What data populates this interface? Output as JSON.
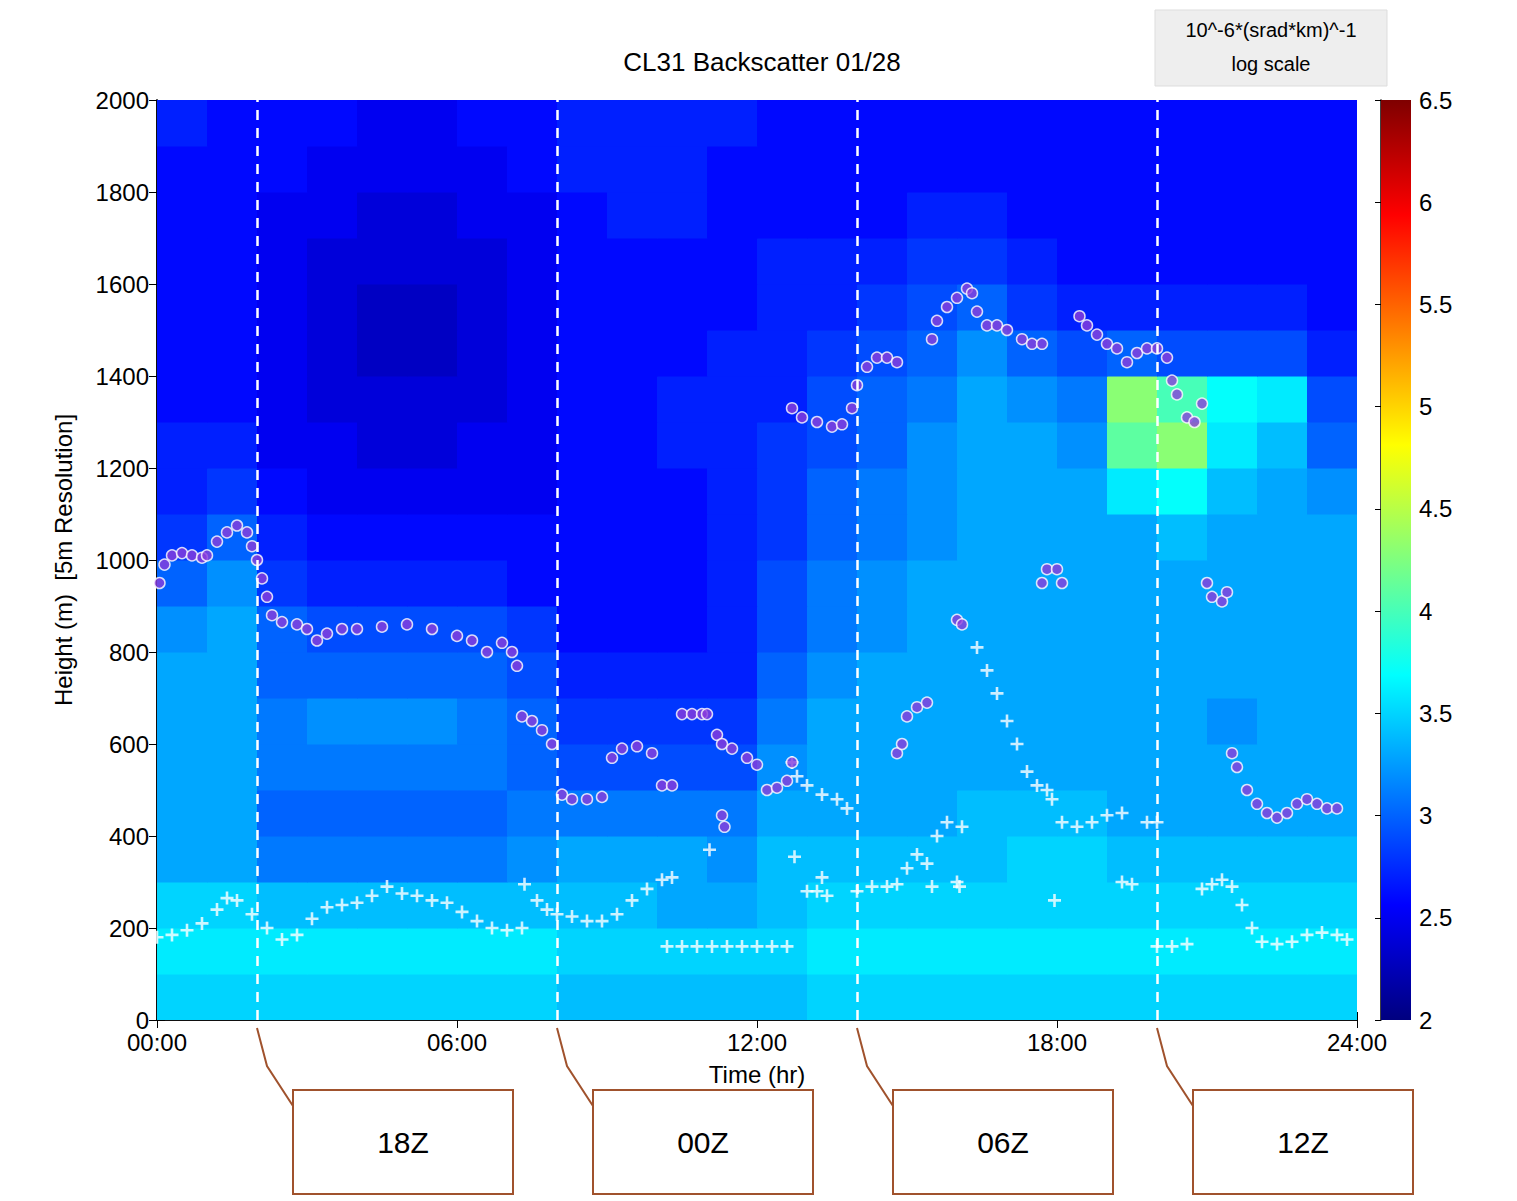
{
  "chart_data": {
    "type": "heatmap",
    "title": "CL31 Backscatter 01/28",
    "x_label": "Time (hr)",
    "y_label": "Height (m)  [5m Resolution]",
    "xlim": [
      0,
      24
    ],
    "xticks": [
      {
        "value": 0,
        "label": "00:00"
      },
      {
        "value": 6,
        "label": "06:00"
      },
      {
        "value": 12,
        "label": "12:00"
      },
      {
        "value": 18,
        "label": "18:00"
      },
      {
        "value": 24,
        "label": "24:00"
      }
    ],
    "ylim": [
      0,
      2000
    ],
    "yticks": [
      0,
      200,
      400,
      600,
      800,
      1000,
      1200,
      1400,
      1600,
      1800,
      2000
    ],
    "grid": false,
    "heatmap": {
      "x_edges": [
        0,
        1,
        2,
        3,
        4,
        5,
        6,
        7,
        8,
        9,
        10,
        11,
        12,
        13,
        14,
        15,
        16,
        17,
        18,
        19,
        20,
        21,
        22,
        23,
        24
      ],
      "y_edges": [
        0,
        100,
        200,
        300,
        400,
        500,
        600,
        700,
        800,
        900,
        1000,
        1100,
        1200,
        1300,
        1400,
        1500,
        1600,
        1700,
        1800,
        1900,
        2000
      ],
      "values": [
        [
          3.5,
          3.5,
          3.5,
          3.5,
          3.5,
          3.5,
          3.5,
          3.5,
          3.4,
          3.4,
          3.4,
          3.4,
          3.4,
          3.5,
          3.5,
          3.5,
          3.5,
          3.5,
          3.5,
          3.5,
          3.5,
          3.5,
          3.5,
          3.5
        ],
        [
          3.6,
          3.6,
          3.6,
          3.6,
          3.6,
          3.6,
          3.6,
          3.6,
          3.5,
          3.5,
          3.5,
          3.5,
          3.5,
          3.6,
          3.6,
          3.6,
          3.6,
          3.6,
          3.6,
          3.6,
          3.6,
          3.6,
          3.6,
          3.6
        ],
        [
          3.5,
          3.5,
          3.4,
          3.4,
          3.4,
          3.4,
          3.4,
          3.4,
          3.4,
          3.4,
          3.3,
          3.3,
          3.4,
          3.5,
          3.5,
          3.5,
          3.5,
          3.5,
          3.5,
          3.5,
          3.5,
          3.5,
          3.5,
          3.5
        ],
        [
          3.3,
          3.3,
          3.1,
          3.1,
          3.1,
          3.1,
          3.1,
          3.2,
          3.3,
          3.3,
          3.3,
          3.2,
          3.4,
          3.4,
          3.4,
          3.4,
          3.4,
          3.5,
          3.5,
          3.4,
          3.4,
          3.4,
          3.4,
          3.4
        ],
        [
          3.3,
          3.3,
          3.0,
          3.0,
          3.0,
          3.0,
          3.0,
          3.1,
          3.1,
          3.1,
          3.1,
          3.1,
          3.3,
          3.3,
          3.3,
          3.3,
          3.4,
          3.4,
          3.4,
          3.3,
          3.3,
          3.3,
          3.3,
          3.3
        ],
        [
          3.3,
          3.3,
          3.1,
          3.1,
          3.1,
          3.1,
          3.1,
          3.0,
          2.9,
          2.9,
          2.9,
          2.9,
          3.2,
          3.3,
          3.3,
          3.3,
          3.3,
          3.3,
          3.3,
          3.3,
          3.3,
          3.3,
          3.3,
          3.3
        ],
        [
          3.3,
          3.3,
          3.1,
          3.2,
          3.2,
          3.2,
          3.1,
          3.0,
          2.8,
          2.8,
          2.8,
          2.8,
          3.1,
          3.3,
          3.3,
          3.3,
          3.3,
          3.3,
          3.3,
          3.3,
          3.3,
          3.2,
          3.3,
          3.3
        ],
        [
          3.3,
          3.3,
          3.0,
          3.0,
          3.0,
          3.0,
          3.0,
          2.9,
          2.7,
          2.7,
          2.7,
          2.7,
          3.0,
          3.2,
          3.3,
          3.3,
          3.3,
          3.3,
          3.3,
          3.3,
          3.3,
          3.3,
          3.3,
          3.3
        ],
        [
          3.2,
          3.3,
          3.0,
          2.9,
          2.9,
          2.9,
          2.9,
          2.8,
          2.6,
          2.6,
          2.6,
          2.7,
          2.9,
          3.1,
          3.2,
          3.3,
          3.3,
          3.3,
          3.3,
          3.3,
          3.3,
          3.3,
          3.3,
          3.3
        ],
        [
          3.0,
          3.2,
          2.8,
          2.7,
          2.7,
          2.7,
          2.7,
          2.6,
          2.6,
          2.6,
          2.6,
          2.7,
          2.9,
          3.1,
          3.2,
          3.3,
          3.3,
          3.3,
          3.3,
          3.3,
          3.3,
          3.3,
          3.3,
          3.3
        ],
        [
          2.8,
          3.0,
          2.7,
          2.6,
          2.6,
          2.6,
          2.6,
          2.6,
          2.6,
          2.6,
          2.6,
          2.7,
          2.8,
          3.0,
          3.1,
          3.2,
          3.3,
          3.3,
          3.3,
          3.3,
          3.4,
          3.3,
          3.3,
          3.3
        ],
        [
          2.7,
          2.8,
          2.6,
          2.5,
          2.5,
          2.5,
          2.5,
          2.5,
          2.6,
          2.6,
          2.6,
          2.7,
          2.8,
          3.0,
          3.1,
          3.2,
          3.3,
          3.3,
          3.3,
          3.6,
          3.7,
          3.4,
          3.3,
          3.2
        ],
        [
          2.7,
          2.7,
          2.5,
          2.5,
          2.4,
          2.4,
          2.5,
          2.5,
          2.6,
          2.6,
          2.7,
          2.7,
          2.8,
          2.9,
          3.0,
          3.2,
          3.3,
          3.3,
          3.2,
          4.1,
          4.3,
          3.6,
          3.4,
          3.0
        ],
        [
          2.6,
          2.6,
          2.5,
          2.4,
          2.4,
          2.4,
          2.4,
          2.5,
          2.6,
          2.6,
          2.7,
          2.7,
          2.7,
          2.9,
          3.0,
          3.1,
          3.3,
          3.2,
          3.1,
          4.3,
          4.0,
          3.7,
          3.6,
          2.9
        ],
        [
          2.6,
          2.6,
          2.5,
          2.4,
          2.3,
          2.3,
          2.4,
          2.5,
          2.6,
          2.6,
          2.6,
          2.7,
          2.7,
          2.8,
          2.9,
          3.0,
          3.2,
          3.0,
          2.9,
          3.0,
          2.9,
          2.9,
          2.9,
          2.7
        ],
        [
          2.6,
          2.6,
          2.5,
          2.4,
          2.3,
          2.3,
          2.4,
          2.5,
          2.6,
          2.6,
          2.6,
          2.6,
          2.7,
          2.7,
          2.8,
          2.9,
          3.0,
          2.8,
          2.7,
          2.7,
          2.7,
          2.7,
          2.7,
          2.6
        ],
        [
          2.6,
          2.6,
          2.5,
          2.4,
          2.4,
          2.4,
          2.4,
          2.5,
          2.6,
          2.6,
          2.6,
          2.6,
          2.7,
          2.7,
          2.7,
          2.8,
          2.8,
          2.7,
          2.6,
          2.6,
          2.6,
          2.6,
          2.6,
          2.6
        ],
        [
          2.6,
          2.6,
          2.5,
          2.5,
          2.4,
          2.4,
          2.5,
          2.5,
          2.6,
          2.7,
          2.7,
          2.6,
          2.6,
          2.6,
          2.6,
          2.7,
          2.7,
          2.6,
          2.6,
          2.6,
          2.6,
          2.6,
          2.6,
          2.6
        ],
        [
          2.6,
          2.6,
          2.6,
          2.5,
          2.5,
          2.5,
          2.5,
          2.6,
          2.7,
          2.7,
          2.7,
          2.6,
          2.6,
          2.6,
          2.6,
          2.6,
          2.6,
          2.6,
          2.6,
          2.6,
          2.6,
          2.6,
          2.6,
          2.6
        ],
        [
          2.7,
          2.6,
          2.6,
          2.6,
          2.5,
          2.5,
          2.6,
          2.6,
          2.7,
          2.7,
          2.7,
          2.7,
          2.6,
          2.6,
          2.6,
          2.6,
          2.6,
          2.6,
          2.6,
          2.6,
          2.6,
          2.6,
          2.6,
          2.6
        ]
      ]
    },
    "colorbar": {
      "label": [
        "10^-6*(srad*km)^-1",
        "log scale"
      ],
      "range": [
        2,
        6.5
      ],
      "ticks": [
        2,
        2.5,
        3,
        3.5,
        4,
        4.5,
        5,
        5.5,
        6,
        6.5
      ]
    },
    "series": [
      {
        "type": "scatter",
        "marker": "plus",
        "color": "#ffffff",
        "x": [
          0.0,
          0.3,
          0.6,
          0.9,
          1.2,
          1.4,
          1.6,
          1.9,
          2.2,
          2.5,
          2.8,
          3.1,
          3.4,
          3.7,
          4.0,
          4.3,
          4.6,
          4.9,
          5.2,
          5.5,
          5.8,
          6.1,
          6.4,
          6.7,
          7.0,
          7.3,
          7.35,
          7.6,
          7.8,
          8.0,
          8.3,
          8.6,
          8.9,
          9.2,
          9.5,
          9.8,
          10.1,
          10.3,
          10.2,
          10.5,
          10.8,
          11.1,
          11.4,
          11.7,
          12.0,
          12.3,
          12.6,
          11.05,
          12.7,
          12.8,
          13.0,
          13.3,
          13.6,
          13.8,
          12.75,
          13.0,
          13.2,
          13.4,
          13.3,
          14.0,
          14.3,
          14.6,
          14.8,
          15.0,
          15.2,
          15.4,
          15.5,
          15.6,
          15.8,
          16.1,
          16.0,
          16.05,
          17.95,
          16.4,
          16.6,
          16.8,
          17.0,
          17.2,
          17.4,
          17.6,
          17.8,
          17.9,
          18.1,
          18.4,
          18.7,
          19.0,
          19.3,
          19.8,
          20.0,
          19.3,
          19.5,
          20.0,
          20.3,
          20.6,
          20.9,
          21.1,
          21.3,
          21.5,
          21.7,
          21.9,
          22.1,
          22.4,
          22.7,
          23.0,
          23.3,
          23.6,
          23.8
        ],
        "values": [
          180,
          185,
          195,
          210,
          240,
          265,
          260,
          230,
          200,
          175,
          185,
          220,
          245,
          250,
          255,
          270,
          290,
          275,
          270,
          260,
          255,
          235,
          215,
          200,
          195,
          200,
          295,
          260,
          240,
          230,
          225,
          215,
          215,
          230,
          260,
          285,
          305,
          310,
          160,
          160,
          160,
          160,
          160,
          160,
          160,
          160,
          160,
          370,
          560,
          530,
          510,
          490,
          480,
          460,
          355,
          280,
          280,
          270,
          310,
          280,
          290,
          290,
          295,
          330,
          360,
          340,
          290,
          400,
          430,
          420,
          300,
          290,
          260,
          810,
          760,
          710,
          650,
          600,
          540,
          510,
          500,
          480,
          430,
          420,
          430,
          445,
          450,
          430,
          430,
          300,
          295,
          160,
          160,
          165,
          285,
          295,
          305,
          290,
          250,
          200,
          170,
          165,
          170,
          185,
          190,
          185,
          175
        ]
      },
      {
        "type": "scatter",
        "marker": "circle",
        "color": "#8b3ddb",
        "x": [
          0.05,
          0.15,
          0.3,
          0.5,
          0.7,
          0.9,
          1.0,
          1.2,
          1.4,
          1.6,
          1.8,
          1.9,
          2.0,
          2.1,
          2.2,
          2.3,
          2.5,
          2.8,
          3.0,
          3.2,
          3.4,
          3.7,
          4.0,
          4.5,
          5.0,
          5.5,
          6.0,
          6.3,
          6.6,
          6.9,
          7.1,
          7.2,
          7.3,
          7.5,
          7.7,
          7.9,
          8.1,
          8.3,
          8.6,
          8.9,
          9.1,
          9.3,
          9.6,
          9.9,
          10.1,
          10.3,
          10.5,
          10.7,
          10.9,
          11.0,
          11.2,
          11.3,
          11.3,
          11.35,
          11.5,
          11.8,
          12.0,
          12.2,
          12.4,
          12.6,
          12.7,
          12.7,
          12.9,
          13.2,
          13.5,
          13.7,
          13.9,
          14.0,
          14.2,
          14.4,
          14.6,
          14.8,
          14.8,
          14.9,
          15.0,
          15.2,
          15.4,
          15.5,
          15.6,
          15.8,
          16.0,
          16.2,
          16.3,
          16.4,
          16.6,
          16.8,
          17.0,
          17.3,
          17.5,
          17.7,
          16.0,
          16.1,
          17.7,
          17.8,
          18.0,
          18.1,
          18.45,
          18.6,
          18.8,
          19.0,
          19.2,
          19.4,
          19.6,
          19.8,
          20.0,
          20.2,
          20.3,
          20.4,
          20.6,
          20.75,
          20.9,
          21.0,
          21.1,
          21.3,
          21.4,
          21.5,
          21.6,
          21.8,
          22.0,
          22.2,
          22.4,
          22.6,
          22.8,
          23.0,
          23.2,
          23.4,
          23.6
        ],
        "values": [
          950,
          990,
          1010,
          1015,
          1010,
          1005,
          1010,
          1040,
          1060,
          1075,
          1060,
          1030,
          1000,
          960,
          920,
          880,
          865,
          860,
          850,
          825,
          840,
          850,
          850,
          855,
          860,
          850,
          835,
          825,
          800,
          820,
          800,
          770,
          660,
          650,
          630,
          600,
          490,
          480,
          480,
          485,
          570,
          590,
          595,
          580,
          510,
          510,
          665,
          665,
          665,
          665,
          620,
          600,
          445,
          420,
          590,
          570,
          555,
          500,
          505,
          520,
          560,
          1330,
          1310,
          1300,
          1290,
          1295,
          1330,
          1380,
          1420,
          1440,
          1440,
          1430,
          580,
          600,
          660,
          680,
          690,
          1480,
          1520,
          1550,
          1570,
          1590,
          1580,
          1540,
          1510,
          1510,
          1500,
          1480,
          1470,
          1470,
          870,
          860,
          950,
          980,
          980,
          950,
          1530,
          1510,
          1490,
          1470,
          1460,
          1430,
          1450,
          1460,
          1460,
          1440,
          1390,
          1360,
          1310,
          1300,
          1340,
          950,
          920,
          910,
          930,
          580,
          550,
          500,
          470,
          450,
          440,
          450,
          470,
          480,
          470,
          460,
          460
        ]
      }
    ],
    "annotations": [
      {
        "x": 2,
        "label": "18Z"
      },
      {
        "x": 8,
        "label": "00Z"
      },
      {
        "x": 14,
        "label": "06Z"
      },
      {
        "x": 20,
        "label": "12Z"
      }
    ]
  }
}
